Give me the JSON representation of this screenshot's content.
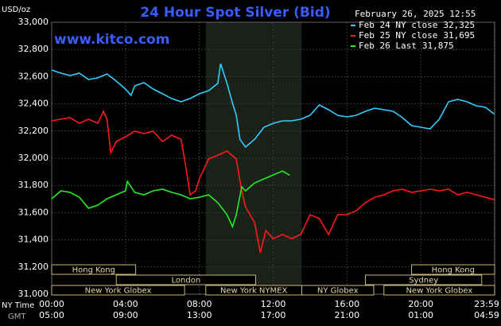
{
  "chart_data": {
    "type": "line",
    "title": "24 Hour Spot Silver (Bid)",
    "site": "www.kitco.com",
    "timestamp": "February 26, 2025 12:55",
    "y_label": "USD/oz",
    "x_row_labels": [
      "NY Time",
      "GMT"
    ],
    "xlim": [
      0,
      24
    ],
    "xticks": [
      {
        "value": 0,
        "label": "00:00"
      },
      {
        "value": 4,
        "label": "04:00"
      },
      {
        "value": 8,
        "label": "08:00"
      },
      {
        "value": 12,
        "label": "12:00"
      },
      {
        "value": 16,
        "label": "16:00"
      },
      {
        "value": 20,
        "label": "20:00"
      },
      {
        "value": 23.98,
        "label": "23:59"
      }
    ],
    "gmt_labels": [
      "05:00",
      "09:00",
      "13:00",
      "17:00",
      "21:00",
      "01:00",
      "04:59"
    ],
    "ylim": [
      31000,
      33000
    ],
    "yticks": [
      {
        "value": 31000,
        "label": "31,000"
      },
      {
        "value": 31200,
        "label": "31,200"
      },
      {
        "value": 31400,
        "label": "31,400"
      },
      {
        "value": 31600,
        "label": "31,600"
      },
      {
        "value": 31800,
        "label": "31,800"
      },
      {
        "value": 32000,
        "label": "32,000"
      },
      {
        "value": 32200,
        "label": "32,200"
      },
      {
        "value": 32400,
        "label": "32,400"
      },
      {
        "value": 32600,
        "label": "32,600"
      },
      {
        "value": 32800,
        "label": "32,800"
      },
      {
        "value": 33000,
        "label": "33,000"
      }
    ],
    "grid": true,
    "series": [
      {
        "name": "Feb 24 NY close",
        "color": "#33ccff",
        "legend_value": {
          "value": 32325,
          "label": "32,325"
        },
        "x": [
          0,
          0.5,
          1,
          1.5,
          2,
          2.5,
          3,
          3.5,
          4,
          4.3,
          4.5,
          5,
          5.5,
          6,
          6.5,
          7,
          7.5,
          8,
          8.5,
          9,
          9.15,
          9.5,
          9.8,
          10,
          10.2,
          10.5,
          11,
          11.5,
          12,
          12.5,
          13,
          13.5,
          14,
          14.5,
          15,
          15.5,
          16,
          16.5,
          17,
          17.5,
          18,
          18.5,
          19,
          19.5,
          20,
          20.5,
          21,
          21.5,
          22,
          22.5,
          23,
          23.5,
          23.98
        ],
        "values": [
          32649,
          32626,
          32608,
          32626,
          32579,
          32591,
          32620,
          32567,
          32509,
          32462,
          32532,
          32556,
          32509,
          32474,
          32439,
          32415,
          32439,
          32474,
          32497,
          32550,
          32696,
          32550,
          32404,
          32316,
          32140,
          32082,
          32140,
          32228,
          32257,
          32275,
          32275,
          32287,
          32316,
          32392,
          32357,
          32316,
          32304,
          32316,
          32345,
          32368,
          32357,
          32345,
          32298,
          32240,
          32228,
          32216,
          32287,
          32415,
          32433,
          32415,
          32386,
          32374,
          32325
        ]
      },
      {
        "name": "Feb 25 NY close",
        "color": "#ff1a1a",
        "legend_value": {
          "value": 31695,
          "label": "31,695"
        },
        "x": [
          0,
          0.5,
          1,
          1.5,
          2,
          2.5,
          2.8,
          3,
          3.2,
          3.5,
          4,
          4.5,
          5,
          5.5,
          6,
          6.5,
          7,
          7.2,
          7.5,
          7.8,
          8,
          8.5,
          9,
          9.5,
          10,
          10.3,
          10.5,
          11,
          11.3,
          11.6,
          12,
          12.5,
          13,
          13.5,
          14,
          14.5,
          15,
          15.5,
          16,
          16.5,
          17,
          17.5,
          18,
          18.5,
          19,
          19.5,
          20,
          20.5,
          21,
          21.5,
          22,
          22.5,
          23,
          23.5,
          23.98
        ],
        "values": [
          32275,
          32287,
          32298,
          32257,
          32287,
          32257,
          32345,
          32287,
          32041,
          32123,
          32158,
          32199,
          32181,
          32199,
          32123,
          32170,
          32140,
          31994,
          31731,
          31760,
          31848,
          31994,
          32023,
          32053,
          31994,
          31760,
          31643,
          31526,
          31304,
          31468,
          31409,
          31439,
          31409,
          31439,
          31585,
          31556,
          31439,
          31585,
          31585,
          31614,
          31673,
          31713,
          31731,
          31760,
          31772,
          31749,
          31760,
          31772,
          31760,
          31772,
          31731,
          31749,
          31731,
          31713,
          31695
        ]
      },
      {
        "name": "Feb 26 Last",
        "color": "#22ee22",
        "legend_value": {
          "value": 31875,
          "label": "31,875"
        },
        "x": [
          0,
          0.5,
          1,
          1.5,
          2,
          2.5,
          3,
          3.5,
          4,
          4.1,
          4.5,
          5,
          5.5,
          6,
          6.5,
          7,
          7.5,
          8,
          8.5,
          9,
          9.5,
          9.8,
          10,
          10.3,
          10.5,
          11,
          11.5,
          12,
          12.5,
          12.9
        ],
        "values": [
          31702,
          31760,
          31749,
          31713,
          31632,
          31655,
          31702,
          31731,
          31760,
          31830,
          31749,
          31731,
          31760,
          31772,
          31749,
          31731,
          31702,
          31713,
          31731,
          31673,
          31585,
          31497,
          31585,
          31790,
          31760,
          31819,
          31848,
          31877,
          31906,
          31875
        ]
      }
    ],
    "sessions": [
      [
        {
          "label": "Hong Kong",
          "start": 0,
          "end": 4.55
        },
        {
          "label": "Hong Kong",
          "start": 19.5,
          "end": 24
        }
      ],
      [
        {
          "label": "London",
          "start": 3.5,
          "end": 11.05
        },
        {
          "label": "Sydney",
          "start": 17,
          "end": 23.3
        }
      ],
      [
        {
          "label": "New York Globex",
          "start": 0,
          "end": 7.2
        },
        {
          "label": "New York NYMEX",
          "start": 8.35,
          "end": 13.55
        },
        {
          "label": "NY Globex",
          "start": 13.55,
          "end": 17.45
        },
        {
          "label": "New York Globex",
          "start": 18,
          "end": 24
        }
      ]
    ]
  }
}
